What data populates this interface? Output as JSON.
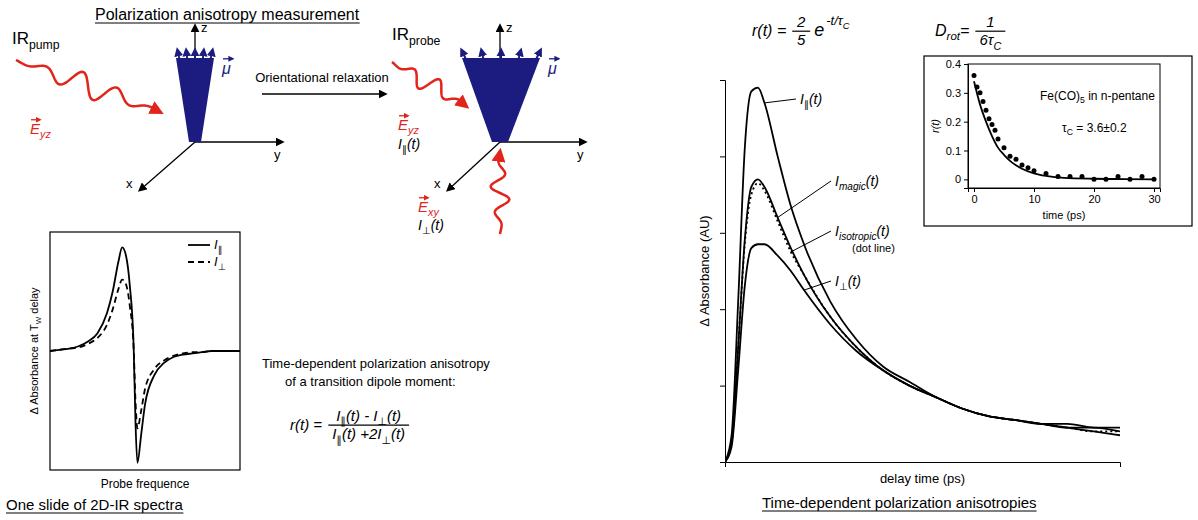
{
  "diagram": {
    "title": "Polarization anisotropy measurement",
    "pump": {
      "label": "IRpump",
      "field": "Eyz"
    },
    "transition": "Orientational relaxation",
    "probe": {
      "label": "IRprobe",
      "field_parallel": "Eyz",
      "signal_parallel": "I∥(t)",
      "field_perpendicular": "Exy",
      "signal_perpendicular": "I⊥(t)"
    },
    "axes_labels": [
      "x",
      "y",
      "z"
    ],
    "dipole": "μ",
    "anisotropy_text": [
      "Time-dependent polarization anisotropy",
      "of a transition dipole moment:"
    ],
    "anisotropy_formula": {
      "lhs": "r(t) =",
      "numerator": "I∥(t) - I⊥(t)",
      "denominator": "I∥(t) +2I⊥(t)"
    },
    "spectrum_caption": "One slide of 2D-IR spectra",
    "decay_formula": {
      "lhs": "r(t) =",
      "numerator": "2",
      "denominator": "5",
      "base": "e",
      "exponent": "-t/τC"
    },
    "diffusion_formula": {
      "lhs": "Drot=",
      "numerator": "1",
      "denominator": "6τC"
    },
    "right_caption": "Time-dependent polarization anisotropies"
  },
  "chart_data": [
    {
      "type": "line",
      "x_label": "Probe frequence",
      "y_label": "Δ Absorbance at TW delay",
      "x": [
        0,
        5,
        10,
        15,
        20,
        25,
        30,
        33,
        36,
        38,
        40,
        42,
        44,
        45,
        46,
        48,
        50,
        55,
        60,
        65,
        70,
        75,
        80,
        85,
        90,
        95,
        100
      ],
      "xlim": [
        0,
        100
      ],
      "ylim": [
        -1,
        1
      ],
      "tick_labels": false,
      "legend": "top-right",
      "series": [
        {
          "name": "I∥",
          "color": "#000000",
          "line_style": "solid",
          "values": [
            0,
            0.01,
            0.02,
            0.04,
            0.08,
            0.15,
            0.32,
            0.5,
            0.75,
            0.87,
            0.8,
            0.55,
            0.05,
            -0.6,
            -0.94,
            -0.7,
            -0.45,
            -0.2,
            -0.1,
            -0.05,
            -0.03,
            -0.02,
            -0.01,
            0,
            0,
            0,
            0
          ]
        },
        {
          "name": "I⊥",
          "color": "#000000",
          "line_style": "dashed",
          "values": [
            0,
            0.01,
            0.02,
            0.03,
            0.06,
            0.11,
            0.22,
            0.35,
            0.52,
            0.6,
            0.56,
            0.38,
            0.03,
            -0.42,
            -0.65,
            -0.5,
            -0.32,
            -0.15,
            -0.08,
            -0.04,
            -0.02,
            -0.01,
            -0.01,
            0,
            0,
            0,
            0
          ]
        }
      ]
    },
    {
      "type": "line",
      "x_label": "delay time (ps)",
      "y_label": "Δ Absorbance (AU)",
      "x": [
        0,
        0.5,
        1,
        1.5,
        2,
        2.5,
        3,
        4,
        5,
        6,
        8,
        10,
        12,
        14,
        16,
        18,
        20,
        22,
        24,
        26,
        28,
        30
      ],
      "xlim": [
        0,
        30
      ],
      "ylim": [
        0,
        1
      ],
      "yticks": [
        0,
        0.2,
        0.4,
        0.6,
        0.8,
        1
      ],
      "tick_labels": false,
      "annotations": [
        "(dot line)"
      ],
      "series": [
        {
          "name": "I∥(t)",
          "color": "#000000",
          "line_style": "solid",
          "values": [
            0,
            0.07,
            0.42,
            0.82,
            0.97,
            0.98,
            0.94,
            0.8,
            0.67,
            0.57,
            0.42,
            0.32,
            0.25,
            0.21,
            0.17,
            0.14,
            0.12,
            0.11,
            0.1,
            0.1,
            0.09,
            0.09
          ]
        },
        {
          "name": "Imagic(t)",
          "color": "#000000",
          "line_style": "solid",
          "values": [
            0,
            0.05,
            0.3,
            0.58,
            0.72,
            0.74,
            0.72,
            0.64,
            0.56,
            0.49,
            0.38,
            0.3,
            0.24,
            0.2,
            0.17,
            0.14,
            0.12,
            0.11,
            0.1,
            0.09,
            0.09,
            0.08
          ]
        },
        {
          "name": "Iisotropic(t)",
          "color": "#000000",
          "line_style": "dotted",
          "values": [
            0,
            0.05,
            0.3,
            0.57,
            0.7,
            0.73,
            0.71,
            0.63,
            0.55,
            0.49,
            0.38,
            0.3,
            0.24,
            0.2,
            0.17,
            0.14,
            0.12,
            0.11,
            0.1,
            0.09,
            0.08,
            0.08
          ]
        },
        {
          "name": "I⊥(t)",
          "color": "#000000",
          "line_style": "solid",
          "values": [
            0,
            0.04,
            0.24,
            0.46,
            0.56,
            0.57,
            0.57,
            0.54,
            0.5,
            0.45,
            0.36,
            0.29,
            0.24,
            0.2,
            0.17,
            0.14,
            0.12,
            0.11,
            0.1,
            0.09,
            0.08,
            0.07
          ]
        }
      ]
    },
    {
      "type": "scatter",
      "x_label": "time (ps)",
      "y_label": "r(t)",
      "xlim": [
        -1,
        31
      ],
      "ylim": [
        -0.03,
        0.4
      ],
      "xticks": [
        0,
        10,
        20,
        30
      ],
      "yticks": [
        0,
        0.1,
        0.2,
        0.3,
        0.4
      ],
      "annotations": [
        "Fe(CO)5 in n-pentane",
        "τC = 3.6±0.2"
      ],
      "series": [
        {
          "type": "scatter",
          "marker": "circle",
          "color": "#000000",
          "x": [
            0,
            0.5,
            1,
            1.5,
            2,
            2.5,
            3,
            3.5,
            4,
            5,
            6,
            7,
            8,
            9,
            10,
            12,
            14,
            16,
            18,
            20,
            22,
            24,
            26,
            28,
            30
          ],
          "values": [
            0.36,
            0.32,
            0.3,
            0.27,
            0.24,
            0.21,
            0.19,
            0.17,
            0.14,
            0.11,
            0.08,
            0.07,
            0.05,
            0.04,
            0.03,
            0.02,
            0.01,
            0.01,
            0.01,
            0,
            0,
            0.01,
            0,
            0.01,
            0
          ]
        },
        {
          "type": "line",
          "line_style": "solid",
          "color": "#000000",
          "x": [
            0,
            1,
            2,
            3,
            4,
            5,
            6,
            7,
            8,
            10,
            12,
            15,
            20,
            25,
            30
          ],
          "values": [
            0.34,
            0.26,
            0.2,
            0.15,
            0.11,
            0.085,
            0.064,
            0.049,
            0.037,
            0.021,
            0.012,
            0.005,
            0.002,
            0.001,
            0
          ]
        }
      ]
    }
  ]
}
